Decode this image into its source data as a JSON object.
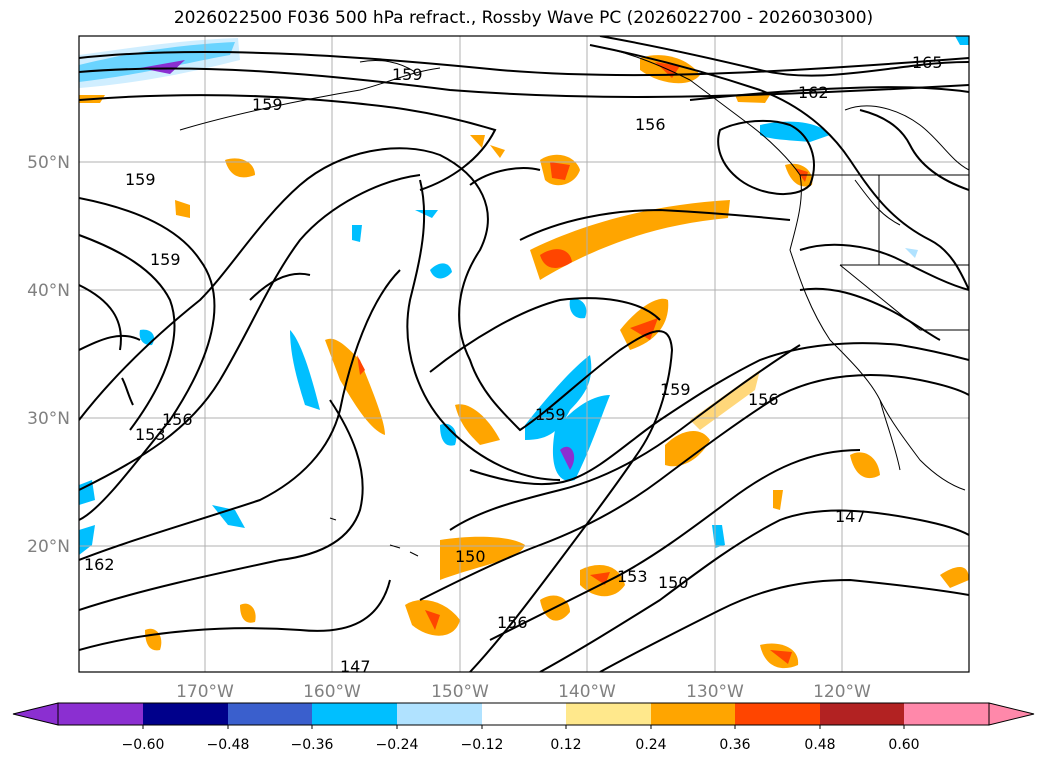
{
  "title": "2026022500 F036 500 hPa refract., Rossby Wave PC (2026022700 - 2026030300)",
  "map": {
    "lat_labels": [
      "50°N",
      "40°N",
      "30°N",
      "20°N"
    ],
    "lon_labels": [
      "170°W",
      "160°W",
      "150°W",
      "140°W",
      "130°W",
      "120°W"
    ],
    "contour_labels": [
      "165",
      "162",
      "159",
      "156",
      "153",
      "150",
      "147"
    ]
  },
  "colorbar": {
    "ticks": [
      "−0.60",
      "−0.48",
      "−0.36",
      "−0.24",
      "−0.12",
      "0.12",
      "0.24",
      "0.36",
      "0.48",
      "0.60"
    ],
    "colors": [
      "#8b2fd1",
      "#00008b",
      "#3a5fcd",
      "#00bfff",
      "#b0e2ff",
      "#ffffff",
      "#ffe88c",
      "#ffa500",
      "#ff4500",
      "#b22222",
      "#ff88aa"
    ]
  }
}
